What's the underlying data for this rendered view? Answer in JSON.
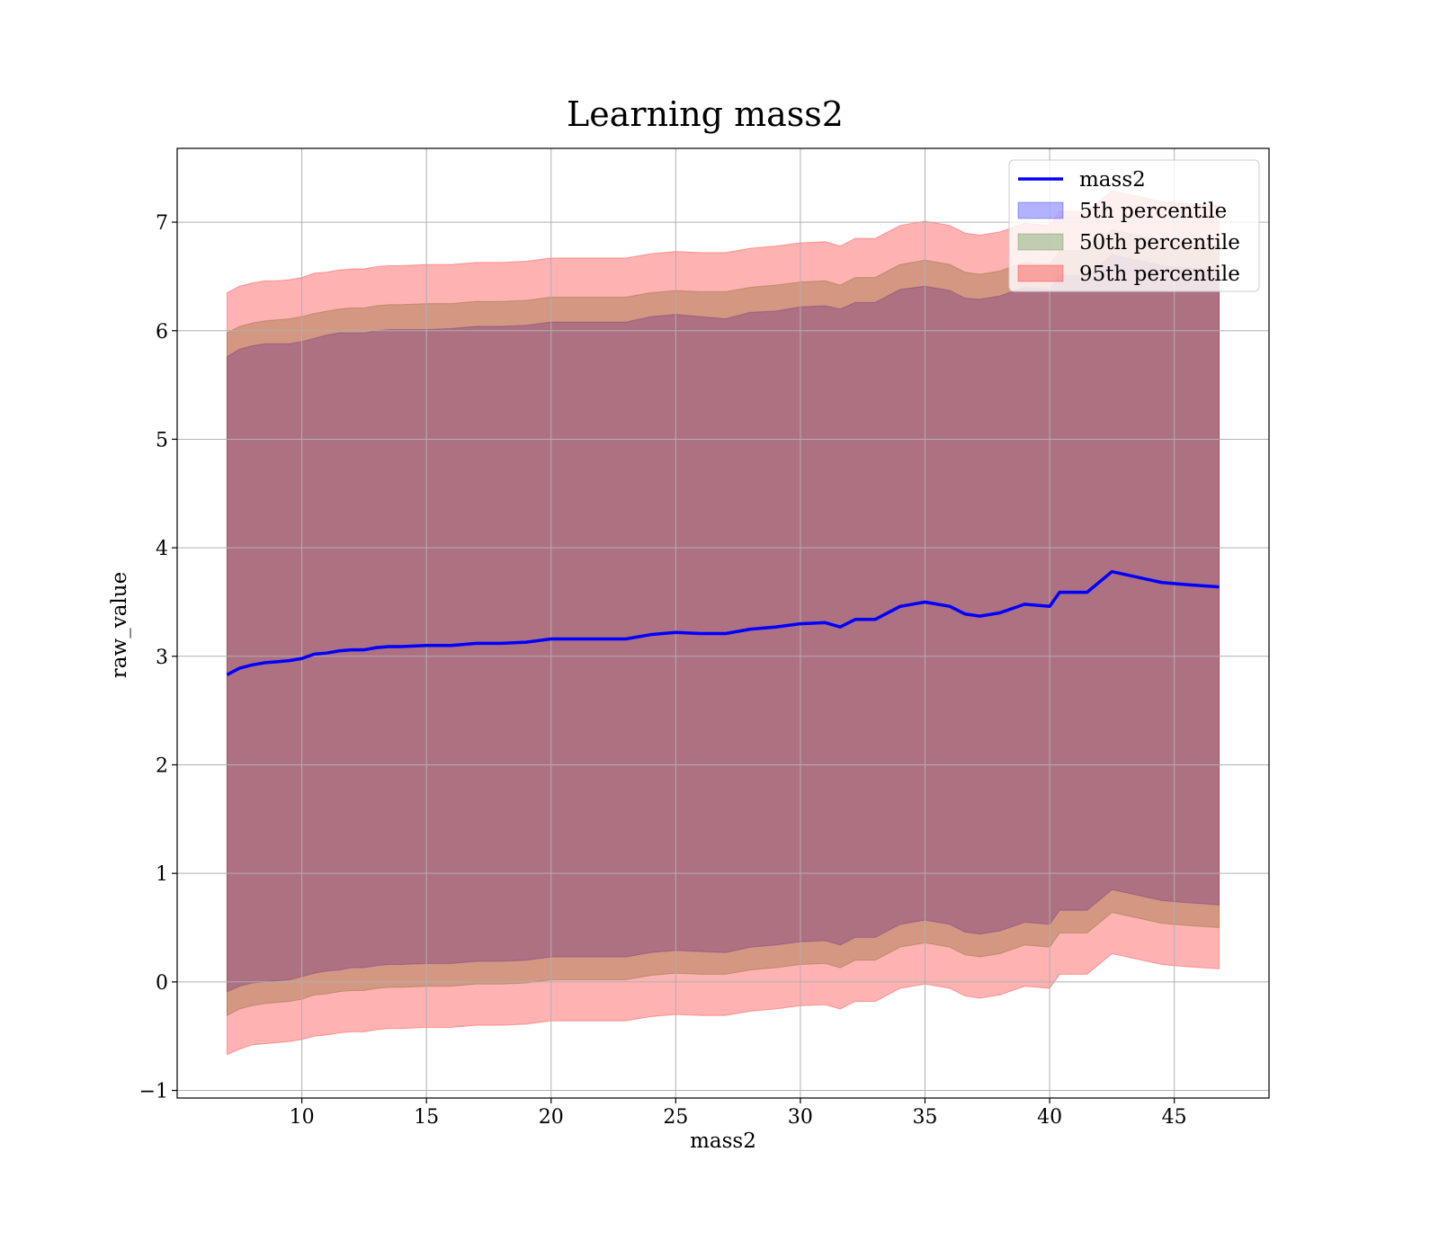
{
  "chart_data": {
    "type": "area",
    "title": "Learning mass2",
    "xlabel": "mass2",
    "ylabel": "raw_value",
    "xlim": [
      5.0,
      48.8
    ],
    "ylim": [
      -1.07,
      7.68
    ],
    "xticks": [
      10,
      15,
      20,
      25,
      30,
      35,
      40,
      45
    ],
    "yticks": [
      -1,
      0,
      1,
      2,
      3,
      4,
      5,
      6,
      7
    ],
    "grid": true,
    "legend_position": "top-right",
    "x": [
      7.0,
      7.5,
      8.0,
      8.5,
      9.0,
      9.5,
      10.0,
      10.5,
      11.0,
      11.5,
      12.0,
      12.5,
      13.0,
      13.5,
      14.0,
      15.0,
      16.0,
      17.0,
      18.0,
      19.0,
      20.0,
      21.0,
      22.0,
      23.0,
      24.0,
      25.0,
      26.0,
      27.0,
      28.0,
      29.0,
      30.0,
      31.0,
      31.6,
      32.2,
      33.0,
      34.0,
      35.0,
      36.0,
      36.6,
      37.2,
      38.0,
      39.0,
      40.0,
      40.4,
      41.5,
      42.5,
      43.5,
      44.5,
      45.5,
      46.8
    ],
    "series": [
      {
        "name": "mass2",
        "kind": "line",
        "color": "#0000ff",
        "values": [
          2.83,
          2.89,
          2.92,
          2.94,
          2.95,
          2.96,
          2.98,
          3.02,
          3.03,
          3.05,
          3.06,
          3.06,
          3.08,
          3.09,
          3.09,
          3.1,
          3.1,
          3.12,
          3.12,
          3.13,
          3.16,
          3.16,
          3.16,
          3.16,
          3.2,
          3.22,
          3.21,
          3.21,
          3.25,
          3.27,
          3.3,
          3.31,
          3.27,
          3.34,
          3.34,
          3.46,
          3.5,
          3.46,
          3.39,
          3.37,
          3.4,
          3.48,
          3.46,
          3.59,
          3.59,
          3.78,
          3.73,
          3.68,
          3.66,
          3.64
        ]
      },
      {
        "name": "5th percentile",
        "kind": "band",
        "color": "#0000ff",
        "upper": [
          5.76,
          5.83,
          5.86,
          5.88,
          5.88,
          5.88,
          5.9,
          5.93,
          5.96,
          5.98,
          5.98,
          5.98,
          6.0,
          6.01,
          6.01,
          6.01,
          6.02,
          6.04,
          6.04,
          6.05,
          6.08,
          6.08,
          6.08,
          6.08,
          6.13,
          6.15,
          6.13,
          6.11,
          6.17,
          6.18,
          6.22,
          6.23,
          6.2,
          6.26,
          6.26,
          6.38,
          6.41,
          6.37,
          6.3,
          6.29,
          6.32,
          6.4,
          6.38,
          6.51,
          6.51,
          6.7,
          6.65,
          6.6,
          6.58,
          6.56
        ],
        "lower": [
          -0.09,
          -0.04,
          -0.01,
          0.0,
          0.01,
          0.02,
          0.05,
          0.08,
          0.1,
          0.11,
          0.13,
          0.13,
          0.15,
          0.16,
          0.16,
          0.17,
          0.17,
          0.19,
          0.19,
          0.2,
          0.23,
          0.23,
          0.23,
          0.23,
          0.27,
          0.29,
          0.28,
          0.27,
          0.32,
          0.34,
          0.37,
          0.38,
          0.34,
          0.41,
          0.41,
          0.53,
          0.57,
          0.53,
          0.46,
          0.44,
          0.47,
          0.55,
          0.53,
          0.66,
          0.66,
          0.85,
          0.8,
          0.75,
          0.73,
          0.71
        ]
      },
      {
        "name": "50th percentile",
        "kind": "band",
        "color": "#2e7d1e",
        "upper": [
          5.98,
          6.04,
          6.07,
          6.09,
          6.1,
          6.11,
          6.13,
          6.16,
          6.18,
          6.2,
          6.21,
          6.21,
          6.23,
          6.24,
          6.24,
          6.25,
          6.25,
          6.27,
          6.27,
          6.28,
          6.31,
          6.31,
          6.31,
          6.31,
          6.35,
          6.37,
          6.36,
          6.36,
          6.4,
          6.42,
          6.45,
          6.46,
          6.42,
          6.49,
          6.49,
          6.61,
          6.65,
          6.61,
          6.54,
          6.52,
          6.55,
          6.63,
          6.61,
          6.74,
          6.74,
          6.93,
          6.88,
          6.83,
          6.81,
          6.79
        ],
        "lower": [
          -0.31,
          -0.25,
          -0.22,
          -0.2,
          -0.19,
          -0.18,
          -0.16,
          -0.12,
          -0.11,
          -0.09,
          -0.08,
          -0.08,
          -0.06,
          -0.05,
          -0.05,
          -0.04,
          -0.04,
          -0.02,
          -0.02,
          -0.01,
          0.02,
          0.02,
          0.02,
          0.02,
          0.06,
          0.08,
          0.07,
          0.07,
          0.11,
          0.13,
          0.16,
          0.17,
          0.13,
          0.2,
          0.2,
          0.32,
          0.36,
          0.32,
          0.25,
          0.23,
          0.26,
          0.34,
          0.32,
          0.45,
          0.45,
          0.64,
          0.59,
          0.54,
          0.52,
          0.5
        ]
      },
      {
        "name": "95th percentile",
        "kind": "band",
        "color": "#ff0000",
        "upper": [
          6.35,
          6.41,
          6.44,
          6.46,
          6.46,
          6.47,
          6.49,
          6.53,
          6.54,
          6.56,
          6.57,
          6.57,
          6.59,
          6.6,
          6.6,
          6.61,
          6.61,
          6.63,
          6.63,
          6.64,
          6.67,
          6.67,
          6.67,
          6.67,
          6.71,
          6.73,
          6.72,
          6.72,
          6.76,
          6.78,
          6.81,
          6.82,
          6.78,
          6.85,
          6.85,
          6.97,
          7.01,
          6.97,
          6.9,
          6.88,
          6.91,
          6.99,
          6.97,
          7.1,
          7.1,
          7.29,
          7.24,
          7.19,
          7.17,
          7.15
        ],
        "lower": [
          -0.67,
          -0.62,
          -0.58,
          -0.57,
          -0.56,
          -0.55,
          -0.53,
          -0.5,
          -0.49,
          -0.47,
          -0.46,
          -0.46,
          -0.44,
          -0.43,
          -0.43,
          -0.42,
          -0.42,
          -0.4,
          -0.4,
          -0.39,
          -0.36,
          -0.36,
          -0.36,
          -0.36,
          -0.32,
          -0.3,
          -0.31,
          -0.31,
          -0.27,
          -0.25,
          -0.22,
          -0.21,
          -0.25,
          -0.18,
          -0.18,
          -0.06,
          -0.02,
          -0.06,
          -0.13,
          -0.15,
          -0.12,
          -0.04,
          -0.06,
          0.07,
          0.07,
          0.26,
          0.21,
          0.16,
          0.14,
          0.12
        ]
      }
    ]
  }
}
